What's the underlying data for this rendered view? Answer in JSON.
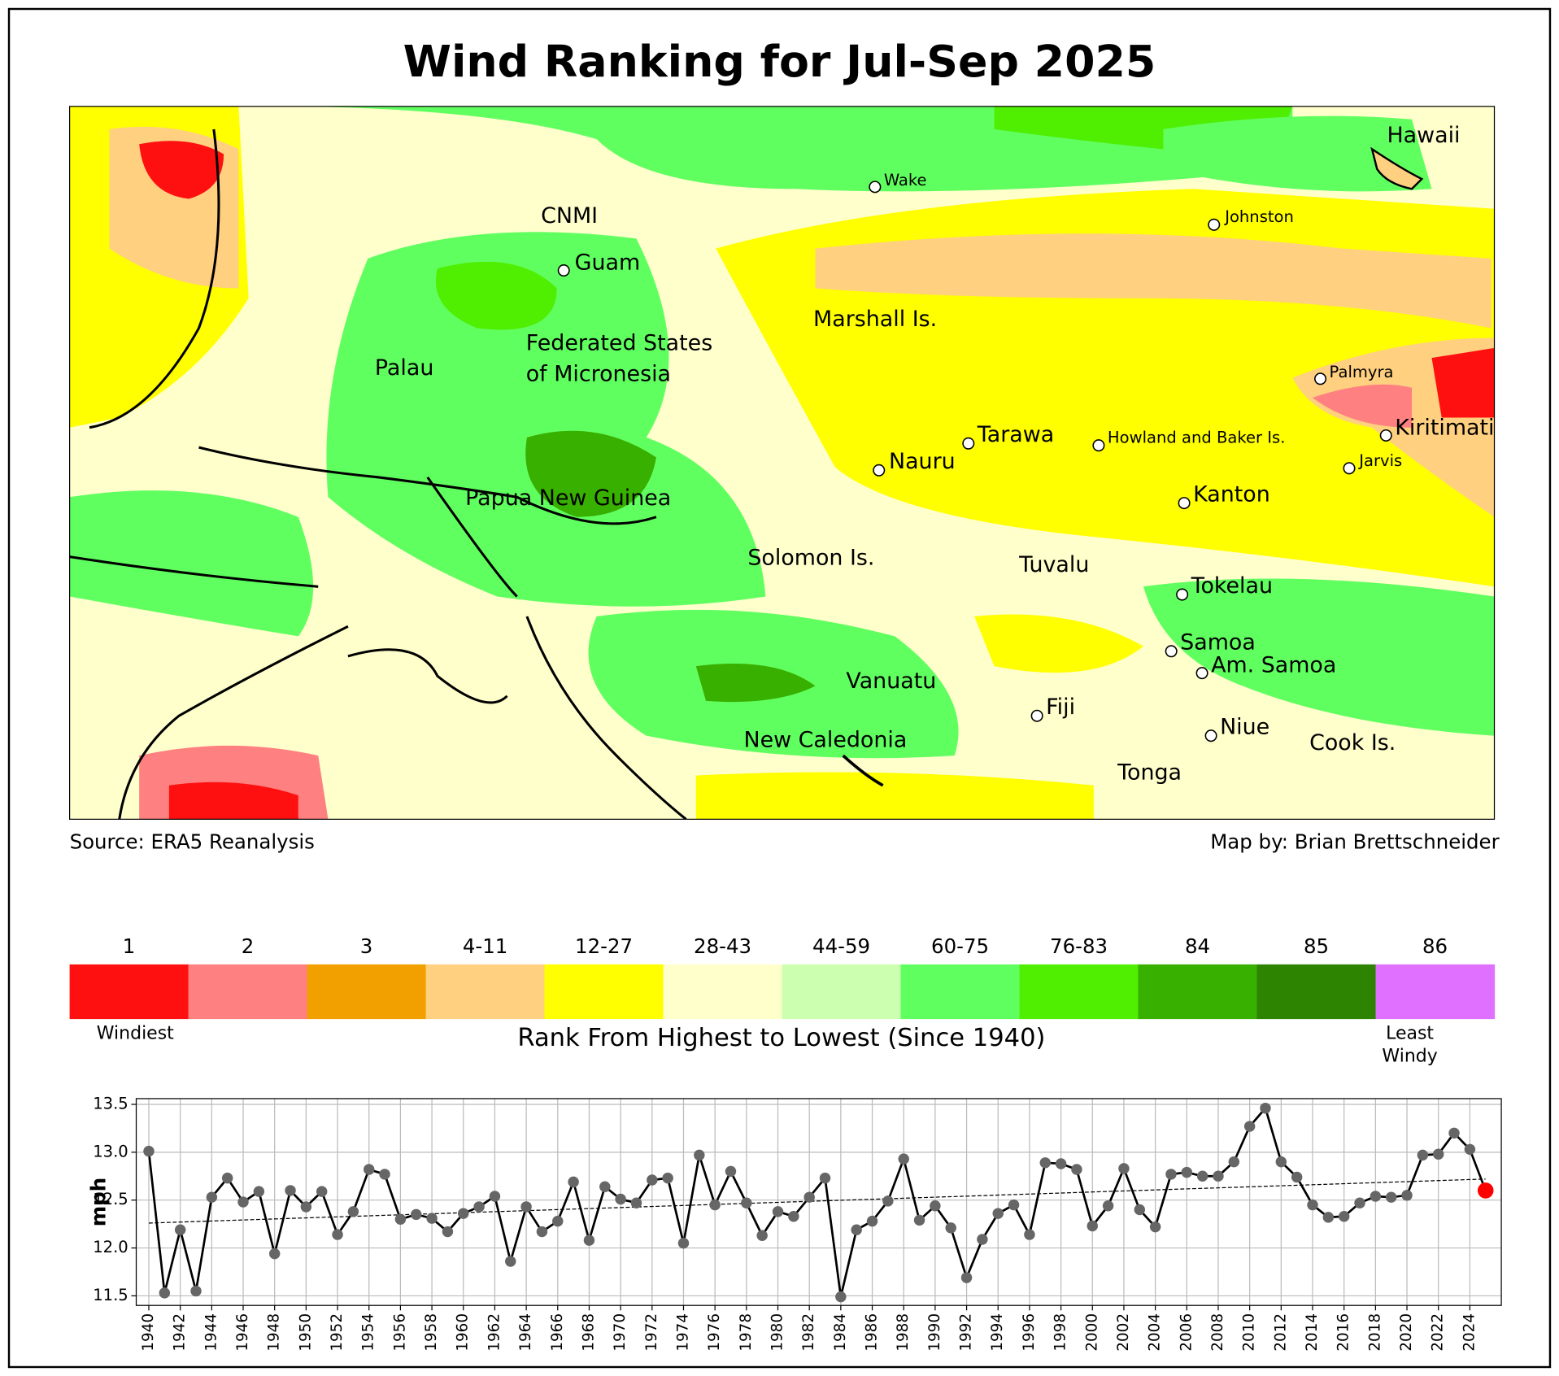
{
  "title": "Wind Ranking for Jul-Sep 2025",
  "map": {
    "places": [
      "Hawaii",
      "Wake",
      "CNMI",
      "Johnston",
      "Guam",
      "Marshall Is.",
      [
        "Federated States",
        "of Micronesia"
      ],
      "Palau",
      "Palmyra",
      "Kiritimati",
      "Tarawa",
      "Howland and Baker Is.",
      "Nauru",
      "Jarvis",
      "Papua New Guinea",
      "Kanton",
      "Solomon Is.",
      "Tuvalu",
      "Tokelau",
      "Samoa",
      "Am. Samoa",
      "Vanuatu",
      "Fiji",
      "Niue",
      "Cook Is.",
      "New Caledonia",
      "Tonga"
    ],
    "source": "Source: ERA5 Reanalysis",
    "credit": "Map by: Brian Brettschneider"
  },
  "colorbar": {
    "labels": [
      "1",
      "2",
      "3",
      "4-11",
      "12-27",
      "28-43",
      "44-59",
      "60-75",
      "76-83",
      "84",
      "85",
      "86"
    ],
    "colors": [
      "#ff1010",
      "#ff8080",
      "#f2a000",
      "#ffd080",
      "#ffff00",
      "#ffffcc",
      "#ccffb0",
      "#60ff60",
      "#50ee00",
      "#38b000",
      "#2d8400",
      "#e070ff"
    ],
    "low_label": "Windiest",
    "high_label": [
      "Least",
      "Windy"
    ],
    "title": "Rank From Highest to Lowest (Since 1940)"
  },
  "chart_data": {
    "type": "line",
    "y_label": "mph",
    "x": [
      1940,
      1941,
      1942,
      1943,
      1944,
      1945,
      1946,
      1947,
      1948,
      1949,
      1950,
      1951,
      1952,
      1953,
      1954,
      1955,
      1956,
      1957,
      1958,
      1959,
      1960,
      1961,
      1962,
      1963,
      1964,
      1965,
      1966,
      1967,
      1968,
      1969,
      1970,
      1971,
      1972,
      1973,
      1974,
      1975,
      1976,
      1977,
      1978,
      1979,
      1980,
      1981,
      1982,
      1983,
      1984,
      1985,
      1986,
      1987,
      1988,
      1989,
      1990,
      1991,
      1992,
      1993,
      1994,
      1995,
      1996,
      1997,
      1998,
      1999,
      2000,
      2001,
      2002,
      2003,
      2004,
      2005,
      2006,
      2007,
      2008,
      2009,
      2010,
      2011,
      2012,
      2013,
      2014,
      2015,
      2016,
      2017,
      2018,
      2019,
      2020,
      2021,
      2022,
      2023,
      2024,
      2025
    ],
    "values": [
      13.01,
      11.53,
      12.19,
      11.55,
      12.53,
      12.73,
      12.48,
      12.59,
      11.94,
      12.6,
      12.43,
      12.59,
      12.14,
      12.38,
      12.82,
      12.77,
      12.3,
      12.35,
      12.31,
      12.17,
      12.36,
      12.43,
      12.54,
      11.86,
      12.43,
      12.17,
      12.28,
      12.69,
      12.08,
      12.64,
      12.51,
      12.47,
      12.71,
      12.73,
      12.05,
      12.97,
      12.45,
      12.8,
      12.47,
      12.13,
      12.38,
      12.33,
      12.53,
      12.73,
      11.49,
      12.19,
      12.28,
      12.49,
      12.93,
      12.29,
      12.44,
      12.21,
      11.69,
      12.09,
      12.36,
      12.45,
      12.14,
      12.89,
      12.88,
      12.82,
      12.23,
      12.44,
      12.83,
      12.4,
      12.22,
      12.77,
      12.79,
      12.75,
      12.75,
      12.9,
      13.27,
      13.46,
      12.9,
      12.74,
      12.45,
      12.32,
      12.33,
      12.47,
      12.54,
      12.53,
      12.55,
      12.97,
      12.98,
      13.2,
      13.03,
      12.6
    ],
    "color": "#000000",
    "marker_color": "#666666",
    "highlight_last": true,
    "highlight_color": "#ff0000",
    "trend": {
      "x": [
        1940,
        2025
      ],
      "values": [
        12.26,
        12.72
      ]
    },
    "xlim": [
      1939.2,
      2026.0
    ],
    "ylim": [
      11.4,
      13.56
    ],
    "xticks": [
      1940,
      1942,
      1944,
      1946,
      1948,
      1950,
      1952,
      1954,
      1956,
      1958,
      1960,
      1962,
      1964,
      1966,
      1968,
      1970,
      1972,
      1974,
      1976,
      1978,
      1980,
      1982,
      1984,
      1986,
      1988,
      1990,
      1992,
      1994,
      1996,
      1998,
      2000,
      2002,
      2004,
      2006,
      2008,
      2010,
      2012,
      2014,
      2016,
      2018,
      2020,
      2022,
      2024
    ],
    "yticks": [
      11.5,
      {
        "value": 12,
        "label": "12.0"
      },
      12.5,
      {
        "value": 13,
        "label": "13.0"
      },
      13.5
    ],
    "grid": true
  }
}
